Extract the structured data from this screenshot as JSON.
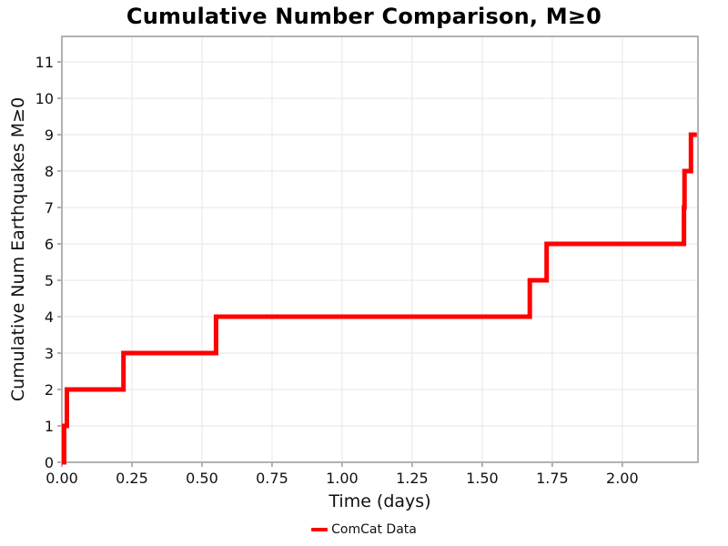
{
  "chart_data": {
    "type": "line",
    "subtype": "step-post",
    "title": "Cumulative Number Comparison, M≥0",
    "xlabel": "Time (days)",
    "ylabel": "Cumulative Num Earthquakes M≥0",
    "xlim": [
      0,
      2.27
    ],
    "ylim": [
      0,
      11.7
    ],
    "grid": true,
    "legend_position": "bottom-center",
    "xticks": {
      "values": [
        0,
        0.25,
        0.5,
        0.75,
        1.0,
        1.25,
        1.5,
        1.75,
        2.0
      ],
      "labels": [
        "0.00",
        "0.25",
        "0.50",
        "0.75",
        "1.00",
        "1.25",
        "1.50",
        "1.75",
        "2.00"
      ]
    },
    "yticks": {
      "values": [
        0,
        1,
        2,
        3,
        4,
        5,
        6,
        7,
        8,
        9,
        10,
        11
      ],
      "labels": [
        "0",
        "1",
        "2",
        "3",
        "4",
        "5",
        "6",
        "7",
        "8",
        "9",
        "10",
        "11"
      ]
    },
    "series": [
      {
        "name": "ComCat Data",
        "color": "#ff0000",
        "line_width": 5,
        "points": [
          [
            0,
            0
          ],
          [
            0.008,
            1
          ],
          [
            0.018,
            2
          ],
          [
            0.22,
            3
          ],
          [
            0.55,
            4
          ],
          [
            1.67,
            5
          ],
          [
            1.73,
            6
          ],
          [
            2.22,
            7
          ],
          [
            2.222,
            8
          ],
          [
            2.245,
            9
          ]
        ],
        "end_x": 2.266
      }
    ],
    "colors": {
      "grid": "#eaeaea",
      "spine": "#9f9f9f",
      "text": "#111111",
      "line": "#ff0000"
    }
  },
  "legend": {
    "entries": [
      {
        "label": "ComCat Data",
        "color": "#ff0000"
      }
    ]
  }
}
